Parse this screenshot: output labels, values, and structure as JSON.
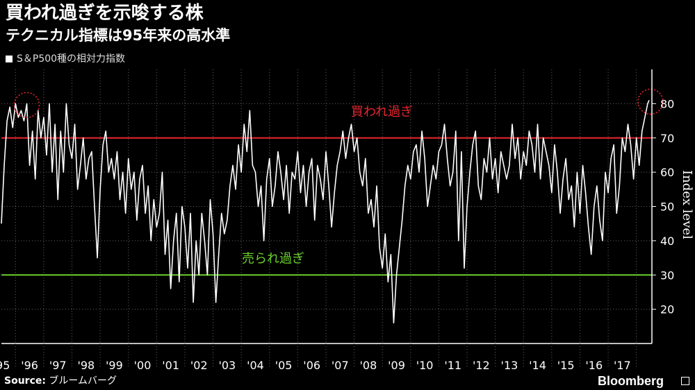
{
  "header": {
    "title": "買われ過ぎを示唆する株",
    "subtitle": "テクニカル指標は95年来の高水準",
    "legend": "S＆P500種の相対力指数"
  },
  "footer": {
    "source_label": "Source:",
    "source_value": "ブルームバーグ",
    "brand": "Bloomberg"
  },
  "chart_data": {
    "type": "line",
    "title": "買われ過ぎを示唆する株",
    "ylabel": "Index level",
    "ylim": [
      10,
      90
    ],
    "yticks": [
      20,
      30,
      40,
      50,
      60,
      70,
      80
    ],
    "xticks": [
      "'95",
      "'96",
      "'97",
      "'98",
      "'99",
      "'00",
      "'01",
      "'02",
      "'03",
      "'04",
      "'05",
      "'06",
      "'07",
      "'08",
      "'09",
      "'10",
      "'11",
      "'12",
      "'13",
      "'14",
      "'15",
      "'16",
      "'17"
    ],
    "x_range": [
      1995.0,
      2017.75
    ],
    "grid": true,
    "reference_lines": [
      {
        "value": 70,
        "label": "買われ過ぎ",
        "color": "#e8262f"
      },
      {
        "value": 30,
        "label": "売られ過ぎ",
        "color": "#6ad12a"
      }
    ],
    "highlights": [
      {
        "x": 1995.85,
        "y": 80
      },
      {
        "x": 2017.95,
        "y": 81
      }
    ],
    "series": [
      {
        "color": "#ffffff",
        "x": [
          1995.0,
          1995.1,
          1995.2,
          1995.3,
          1995.4,
          1995.5,
          1995.6,
          1995.7,
          1995.8,
          1995.9,
          1996.0,
          1996.1,
          1996.2,
          1996.3,
          1996.4,
          1996.5,
          1996.6,
          1996.7,
          1996.8,
          1996.9,
          1997.0,
          1997.1,
          1997.2,
          1997.3,
          1997.4,
          1997.5,
          1997.6,
          1997.7,
          1997.8,
          1997.9,
          1998.0,
          1998.1,
          1998.2,
          1998.3,
          1998.4,
          1998.5,
          1998.6,
          1998.7,
          1998.8,
          1998.9,
          1999.0,
          1999.1,
          1999.2,
          1999.3,
          1999.4,
          1999.5,
          1999.6,
          1999.7,
          1999.8,
          1999.9,
          2000.0,
          2000.1,
          2000.2,
          2000.3,
          2000.4,
          2000.5,
          2000.6,
          2000.7,
          2000.8,
          2000.9,
          2001.0,
          2001.1,
          2001.2,
          2001.3,
          2001.4,
          2001.5,
          2001.6,
          2001.7,
          2001.8,
          2001.9,
          2002.0,
          2002.1,
          2002.2,
          2002.3,
          2002.4,
          2002.5,
          2002.6,
          2002.7,
          2002.8,
          2002.9,
          2003.0,
          2003.1,
          2003.2,
          2003.3,
          2003.4,
          2003.5,
          2003.6,
          2003.7,
          2003.8,
          2003.9,
          2004.0,
          2004.1,
          2004.2,
          2004.3,
          2004.4,
          2004.5,
          2004.6,
          2004.7,
          2004.8,
          2004.9,
          2005.0,
          2005.1,
          2005.2,
          2005.3,
          2005.4,
          2005.5,
          2005.6,
          2005.7,
          2005.8,
          2005.9,
          2006.0,
          2006.1,
          2006.2,
          2006.3,
          2006.4,
          2006.5,
          2006.6,
          2006.7,
          2006.8,
          2006.9,
          2007.0,
          2007.1,
          2007.2,
          2007.3,
          2007.4,
          2007.5,
          2007.6,
          2007.7,
          2007.8,
          2007.9,
          2008.0,
          2008.1,
          2008.2,
          2008.3,
          2008.4,
          2008.5,
          2008.6,
          2008.7,
          2008.8,
          2008.9,
          2009.0,
          2009.1,
          2009.2,
          2009.3,
          2009.4,
          2009.5,
          2009.6,
          2009.7,
          2009.8,
          2009.9,
          2010.0,
          2010.1,
          2010.2,
          2010.3,
          2010.4,
          2010.5,
          2010.6,
          2010.7,
          2010.8,
          2010.9,
          2011.0,
          2011.1,
          2011.2,
          2011.3,
          2011.4,
          2011.5,
          2011.6,
          2011.7,
          2011.8,
          2011.9,
          2012.0,
          2012.1,
          2012.2,
          2012.3,
          2012.4,
          2012.5,
          2012.6,
          2012.7,
          2012.8,
          2012.9,
          2013.0,
          2013.1,
          2013.2,
          2013.3,
          2013.4,
          2013.5,
          2013.6,
          2013.7,
          2013.8,
          2013.9,
          2014.0,
          2014.1,
          2014.2,
          2014.3,
          2014.4,
          2014.5,
          2014.6,
          2014.7,
          2014.8,
          2014.9,
          2015.0,
          2015.1,
          2015.2,
          2015.3,
          2015.4,
          2015.5,
          2015.6,
          2015.7,
          2015.8,
          2015.9,
          2016.0,
          2016.1,
          2016.2,
          2016.3,
          2016.4,
          2016.5,
          2016.6,
          2016.7,
          2016.8,
          2016.9,
          2017.0,
          2017.1,
          2017.2,
          2017.3,
          2017.4,
          2017.5,
          2017.6,
          2017.7,
          2017.8,
          2017.9,
          2017.95
        ],
        "values": [
          45,
          62,
          75,
          79,
          73,
          80,
          76,
          78,
          75,
          80,
          62,
          72,
          58,
          78,
          70,
          76,
          65,
          80,
          60,
          74,
          52,
          72,
          60,
          80,
          68,
          64,
          74,
          55,
          62,
          70,
          58,
          64,
          66,
          50,
          35,
          55,
          68,
          72,
          60,
          64,
          58,
          66,
          52,
          60,
          48,
          64,
          55,
          60,
          46,
          58,
          62,
          48,
          56,
          40,
          52,
          44,
          48,
          60,
          36,
          46,
          26,
          40,
          48,
          28,
          50,
          44,
          32,
          48,
          22,
          40,
          30,
          48,
          40,
          30,
          52,
          42,
          22,
          36,
          48,
          42,
          46,
          56,
          62,
          55,
          68,
          60,
          74,
          66,
          78,
          62,
          60,
          50,
          56,
          40,
          58,
          64,
          50,
          56,
          66,
          60,
          52,
          62,
          48,
          60,
          58,
          66,
          54,
          62,
          50,
          60,
          64,
          46,
          62,
          58,
          52,
          66,
          56,
          44,
          54,
          62,
          66,
          72,
          64,
          70,
          74,
          66,
          70,
          60,
          56,
          64,
          48,
          52,
          44,
          56,
          38,
          32,
          42,
          28,
          36,
          16,
          30,
          38,
          46,
          56,
          62,
          58,
          66,
          68,
          60,
          72,
          64,
          50,
          56,
          62,
          58,
          66,
          68,
          74,
          64,
          56,
          60,
          72,
          40,
          66,
          32,
          50,
          60,
          68,
          72,
          56,
          52,
          64,
          60,
          70,
          58,
          64,
          54,
          66,
          62,
          58,
          62,
          74,
          64,
          70,
          58,
          66,
          62,
          72,
          68,
          60,
          74,
          58,
          70,
          66,
          62,
          54,
          68,
          60,
          48,
          58,
          64,
          52,
          56,
          44,
          60,
          48,
          62,
          54,
          44,
          36,
          50,
          56,
          46,
          40,
          60,
          54,
          64,
          68,
          48,
          56,
          70,
          66,
          74,
          68,
          58,
          70,
          62,
          72,
          76,
          80,
          81
        ]
      }
    ]
  }
}
